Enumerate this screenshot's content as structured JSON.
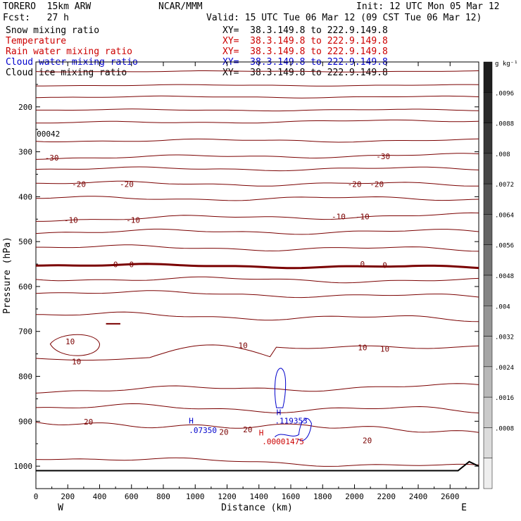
{
  "header": {
    "model": "TORERO  15km ARW",
    "center": "NCAR/MMM",
    "init": "Init: 12 UTC Mon 05 Mar 12",
    "fcst": "Fcst:   27 h",
    "valid": "Valid: 15 UTC Tue 06 Mar 12 (09 CST Tue 06 Mar 12)"
  },
  "fields": [
    {
      "name": "Snow mixing ratio",
      "xy": "XY=  38.3.149.8 to 222.9.149.8",
      "color": "#000000"
    },
    {
      "name": "Temperature",
      "xy": "XY=  38.3.149.8 to 222.9.149.8",
      "color": "#cc0000"
    },
    {
      "name": "Rain water mixing ratio",
      "xy": "XY=  38.3.149.8 to 222.9.149.8",
      "color": "#cc0000"
    },
    {
      "name": "Cloud water mixing ratio",
      "xy": "XY=  38.3.149.8 to 222.9.149.8",
      "color": "#0000cc"
    },
    {
      "name": "Cloud ice mixing ratio",
      "xy": "XY=  38.3.149.8 to 222.9.149.8",
      "color": "#000000"
    }
  ],
  "chart_data": {
    "type": "line",
    "xlabel": "Distance (km)",
    "ylabel": "Pressure (hPa)",
    "xlim": [
      0,
      2780
    ],
    "ylim": [
      100,
      1050
    ],
    "x_ticks": [
      0,
      200,
      400,
      600,
      800,
      1000,
      1200,
      1400,
      1600,
      1800,
      2000,
      2200,
      2400,
      2600
    ],
    "y_ticks": [
      200,
      300,
      400,
      500,
      600,
      700,
      800,
      900,
      1000
    ],
    "endpoint_labels": {
      "left": "W",
      "right": "E"
    },
    "isotherm_color": "#7a0000",
    "zero_isotherm_color": "#7a0000",
    "isotherm_labels": [
      {
        "x": 100,
        "p": 313,
        "text": "-30"
      },
      {
        "x": 2180,
        "p": 310,
        "text": "-30"
      },
      {
        "x": 270,
        "p": 372,
        "text": "-20"
      },
      {
        "x": 570,
        "p": 372,
        "text": "-20"
      },
      {
        "x": 2000,
        "p": 372,
        "text": "-20"
      },
      {
        "x": 2140,
        "p": 372,
        "text": "-20"
      },
      {
        "x": 220,
        "p": 452,
        "text": "-10"
      },
      {
        "x": 610,
        "p": 452,
        "text": "-10"
      },
      {
        "x": 1900,
        "p": 444,
        "text": "-10"
      },
      {
        "x": 2050,
        "p": 444,
        "text": "-10"
      },
      {
        "x": 500,
        "p": 551,
        "text": "0"
      },
      {
        "x": 600,
        "p": 551,
        "text": "0"
      },
      {
        "x": 2050,
        "p": 550,
        "text": "0"
      },
      {
        "x": 2190,
        "p": 552,
        "text": "0"
      },
      {
        "x": 215,
        "p": 722,
        "text": "10"
      },
      {
        "x": 255,
        "p": 767,
        "text": "10"
      },
      {
        "x": 1300,
        "p": 731,
        "text": "10"
      },
      {
        "x": 2050,
        "p": 736,
        "text": "10"
      },
      {
        "x": 2190,
        "p": 739,
        "text": "10"
      },
      {
        "x": 330,
        "p": 901,
        "text": "20"
      },
      {
        "x": 1180,
        "p": 924,
        "text": "20"
      },
      {
        "x": 1330,
        "p": 918,
        "text": "20"
      },
      {
        "x": 2080,
        "p": 943,
        "text": "20"
      }
    ],
    "annotations": [
      {
        "x": 5,
        "p": 260,
        "text": "00042",
        "color": "#000000"
      },
      {
        "x": 960,
        "p": 899,
        "text": "H",
        "color": "#0000cc"
      },
      {
        "x": 960,
        "p": 920,
        "text": ".07350",
        "color": "#0000cc"
      },
      {
        "x": 1510,
        "p": 880,
        "text": "H",
        "color": "#0000cc"
      },
      {
        "x": 1500,
        "p": 899,
        "text": ".119353",
        "color": "#0000cc"
      },
      {
        "x": 1400,
        "p": 925,
        "text": "H",
        "color": "#cc0000"
      },
      {
        "x": 1420,
        "p": 945,
        "text": ".00001475",
        "color": "#cc0000"
      }
    ],
    "colorbar": {
      "unit": "g kg⁻¹",
      "ticks": [
        ".0096",
        ".0088",
        ".008",
        ".0072",
        ".0064",
        ".0056",
        ".0048",
        ".004",
        ".0032",
        ".0024",
        ".0016",
        ".0008"
      ],
      "colors": [
        "#1e1e1e",
        "#2a2a2a",
        "#383838",
        "#464646",
        "#555555",
        "#646464",
        "#747474",
        "#848484",
        "#959595",
        "#a6a6a6",
        "#b8b8b8",
        "#cacaca",
        "#dcdcdc",
        "#eeeeee"
      ]
    }
  }
}
